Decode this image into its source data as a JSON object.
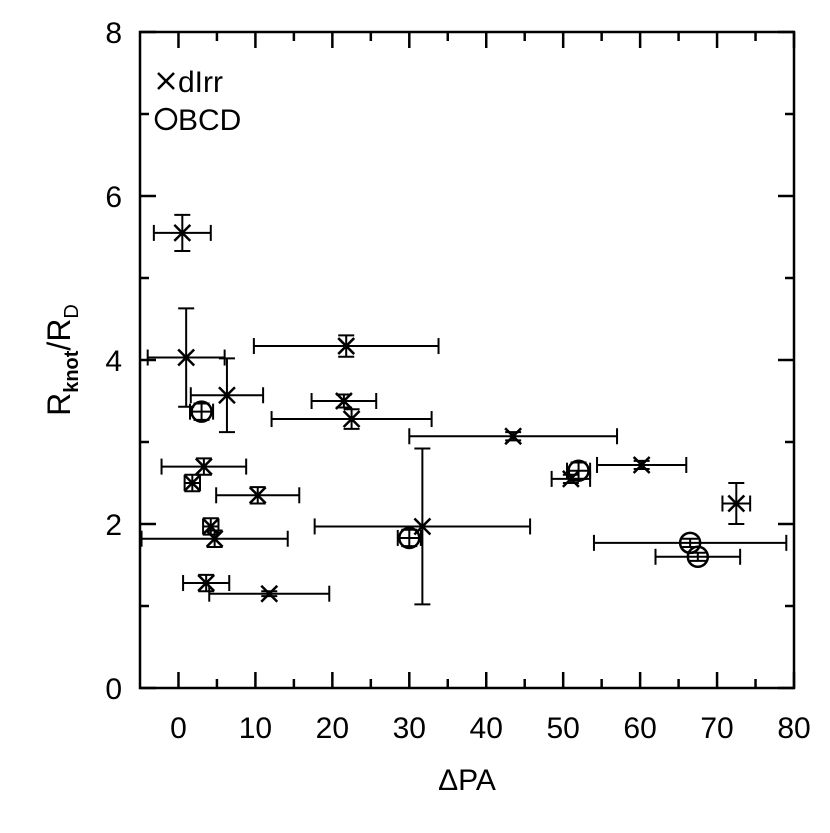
{
  "chart_data": {
    "type": "scatter",
    "title": "",
    "xlabel": "ΔPA",
    "ylabel": {
      "main": "R",
      "sub1": "knot",
      "sep": "/R",
      "sub2": "D"
    },
    "xlim": [
      -5,
      80
    ],
    "ylim": [
      0,
      8
    ],
    "xticks": [
      0,
      10,
      20,
      30,
      40,
      50,
      60,
      70,
      80
    ],
    "yticks": [
      0,
      2,
      4,
      6,
      8
    ],
    "legend": {
      "position": "top-left",
      "items": [
        {
          "symbol": "cross",
          "label": "dIrr"
        },
        {
          "symbol": "circle",
          "label": "BCD"
        }
      ]
    },
    "series": [
      {
        "name": "dIrr",
        "marker": "cross",
        "points": [
          {
            "x": 0.5,
            "y": 5.55,
            "xerr": 3.7,
            "yerr": 0.22
          },
          {
            "x": 1.0,
            "y": 4.03,
            "xerr": 5.0,
            "yerr": 0.6
          },
          {
            "x": 21.8,
            "y": 4.17,
            "xerr": 12.0,
            "yerr": 0.13
          },
          {
            "x": 6.3,
            "y": 3.57,
            "xerr": 4.7,
            "yerr": 0.45
          },
          {
            "x": 21.5,
            "y": 3.5,
            "xerr": 4.2,
            "yerr": 0.08
          },
          {
            "x": 22.5,
            "y": 3.28,
            "xerr": 10.4,
            "yerr": 0.12
          },
          {
            "x": 43.5,
            "y": 3.07,
            "xerr": 13.5,
            "yerr": 0.05
          },
          {
            "x": 3.3,
            "y": 2.7,
            "xerr": 5.5,
            "yerr": 0.1
          },
          {
            "x": 1.8,
            "y": 2.5,
            "xerr": 1.0,
            "yerr": 0.1
          },
          {
            "x": 10.3,
            "y": 2.35,
            "xerr": 5.4,
            "yerr": 0.1
          },
          {
            "x": 60.2,
            "y": 2.72,
            "xerr": 5.8,
            "yerr": 0.05
          },
          {
            "x": 51.0,
            "y": 2.55,
            "xerr": 2.5,
            "yerr": 0.05
          },
          {
            "x": 72.5,
            "y": 2.25,
            "xerr": 1.8,
            "yerr": 0.25
          },
          {
            "x": 4.2,
            "y": 1.97,
            "xerr": 1.0,
            "yerr": 0.1
          },
          {
            "x": 31.7,
            "y": 1.97,
            "xerr": 14.0,
            "yerr": 0.95
          },
          {
            "x": 4.7,
            "y": 1.82,
            "xerr": 9.5,
            "yerr": 0.1
          },
          {
            "x": 3.6,
            "y": 1.28,
            "xerr": 3.0,
            "yerr": 0.1
          },
          {
            "x": 11.8,
            "y": 1.15,
            "xerr": 7.8,
            "yerr": 0.03
          }
        ]
      },
      {
        "name": "BCD",
        "marker": "circle",
        "points": [
          {
            "x": 3.0,
            "y": 3.37,
            "xerr": 1.5,
            "yerr": 0.1
          },
          {
            "x": 30.0,
            "y": 1.83,
            "xerr": 1.5,
            "yerr": 0.1
          },
          {
            "x": 52.0,
            "y": 2.65,
            "xerr": 1.5,
            "yerr": 0.1
          },
          {
            "x": 66.5,
            "y": 1.77,
            "xerr": 12.5,
            "yerr": 0.05
          },
          {
            "x": 67.5,
            "y": 1.6,
            "xerr": 5.5,
            "yerr": 0.05
          }
        ]
      }
    ]
  }
}
